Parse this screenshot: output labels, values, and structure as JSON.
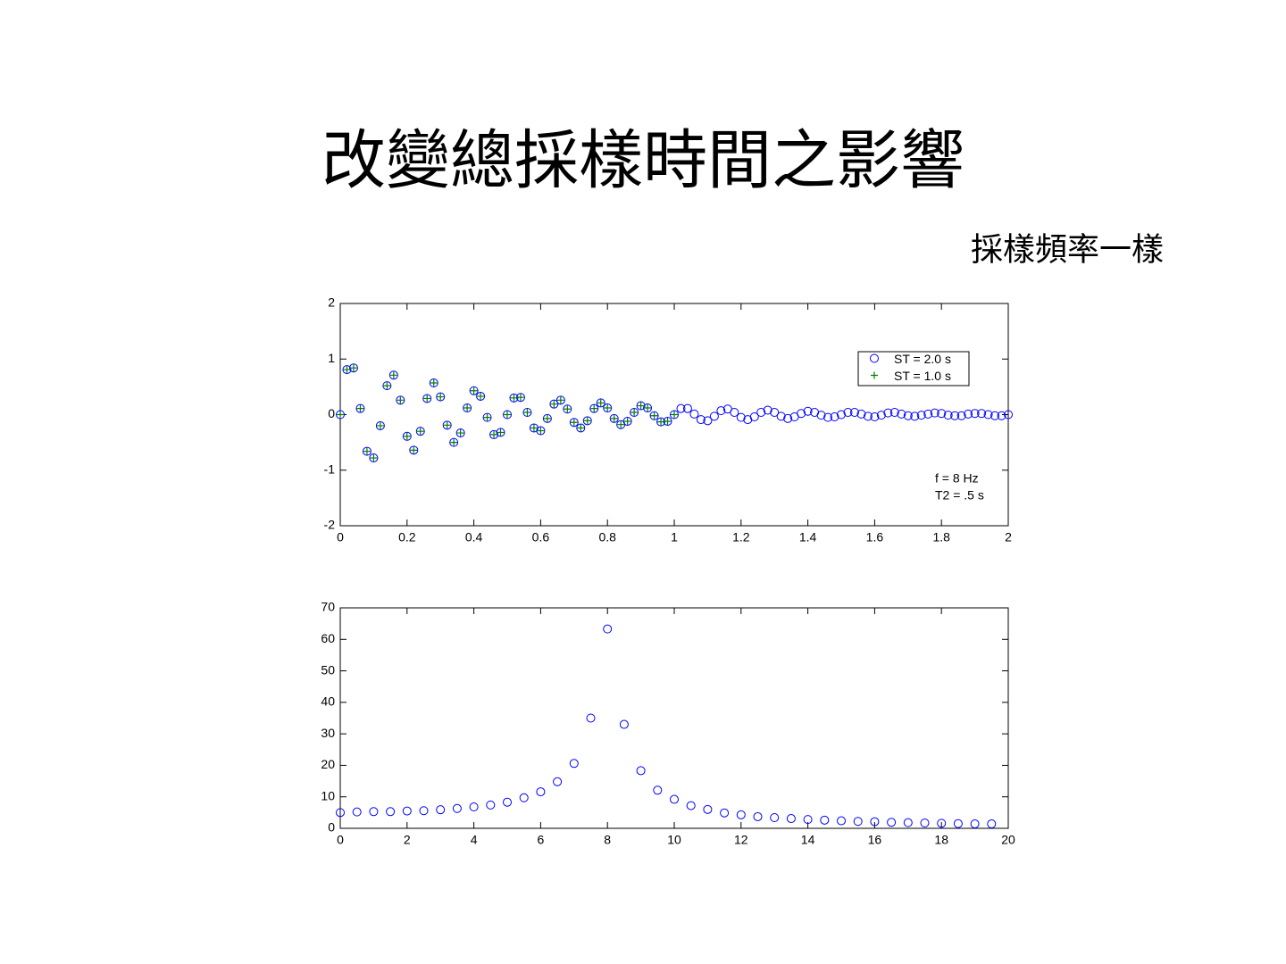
{
  "title": "改變總採樣時間之影響",
  "subtitle": "採樣頻率一樣",
  "chart_data": [
    {
      "type": "scatter",
      "xlim": [
        0,
        2
      ],
      "ylim": [
        -2,
        2
      ],
      "xticks": [
        0,
        0.2,
        0.4,
        0.6,
        0.8,
        1,
        1.2,
        1.4,
        1.6,
        1.8,
        2
      ],
      "yticks": [
        -2,
        -1,
        0,
        1,
        2
      ],
      "x": [
        0,
        0.02,
        0.04,
        0.06,
        0.08,
        0.1,
        0.12,
        0.14,
        0.16,
        0.18,
        0.2,
        0.22,
        0.24,
        0.26,
        0.28,
        0.3,
        0.32,
        0.34,
        0.36,
        0.38,
        0.4,
        0.42,
        0.44,
        0.46,
        0.48,
        0.5,
        0.52,
        0.54,
        0.56,
        0.58,
        0.6,
        0.62,
        0.64,
        0.66,
        0.68,
        0.7,
        0.72,
        0.74,
        0.76,
        0.78,
        0.8,
        0.82,
        0.84,
        0.86,
        0.88,
        0.9,
        0.92,
        0.94,
        0.96,
        0.98,
        1,
        1.02,
        1.04,
        1.06,
        1.08,
        1.1,
        1.12,
        1.14,
        1.16,
        1.18,
        1.2,
        1.22,
        1.24,
        1.26,
        1.28,
        1.3,
        1.32,
        1.34,
        1.36,
        1.38,
        1.4,
        1.42,
        1.44,
        1.46,
        1.48,
        1.5,
        1.52,
        1.54,
        1.56,
        1.58,
        1.6,
        1.62,
        1.64,
        1.66,
        1.68,
        1.7,
        1.72,
        1.74,
        1.76,
        1.78,
        1.8,
        1.82,
        1.84,
        1.86,
        1.88,
        1.9,
        1.92,
        1.94,
        1.96,
        1.98,
        2
      ],
      "series": [
        {
          "name": "ST = 2.0 s",
          "color": "#0000ff",
          "marker": "o",
          "values": [
            0,
            0.81,
            0.84,
            0.11,
            -0.66,
            -0.78,
            -0.2,
            0.52,
            0.71,
            0.26,
            -0.39,
            -0.64,
            -0.3,
            0.29,
            0.57,
            0.32,
            -0.19,
            -0.5,
            -0.33,
            0.12,
            0.43,
            0.33,
            -0.05,
            -0.36,
            -0.32,
            0,
            0.3,
            0.31,
            0.04,
            -0.24,
            -0.29,
            -0.07,
            0.19,
            0.26,
            0.1,
            -0.14,
            -0.24,
            -0.11,
            0.11,
            0.21,
            0.12,
            -0.07,
            -0.18,
            -0.12,
            0.04,
            0.16,
            0.12,
            -0.02,
            -0.13,
            -0.12,
            0,
            0.11,
            0.11,
            0.01,
            -0.09,
            -0.11,
            -0.03,
            0.07,
            0.1,
            0.04,
            -0.05,
            -0.09,
            -0.04,
            0.04,
            0.08,
            0.04,
            -0.03,
            -0.07,
            -0.04,
            0.02,
            0.06,
            0.04,
            -0.01,
            -0.05,
            -0.04,
            0,
            0.04,
            0.04,
            0.01,
            -0.03,
            -0.04,
            -0.01,
            0.03,
            0.04,
            0.01,
            -0.02,
            -0.03,
            -0.01,
            0.01,
            0.03,
            0.02,
            -0.01,
            -0.02,
            -0.02,
            0.01,
            0.02,
            0.02,
            0,
            -0.02,
            -0.02,
            0
          ]
        },
        {
          "name": "ST = 1.0 s",
          "color": "#007f00",
          "marker": "+",
          "values": [
            0,
            0.81,
            0.84,
            0.11,
            -0.66,
            -0.78,
            -0.2,
            0.52,
            0.71,
            0.26,
            -0.39,
            -0.64,
            -0.3,
            0.29,
            0.57,
            0.32,
            -0.19,
            -0.5,
            -0.33,
            0.12,
            0.43,
            0.33,
            -0.05,
            -0.36,
            -0.32,
            0,
            0.3,
            0.31,
            0.04,
            -0.24,
            -0.29,
            -0.07,
            0.19,
            0.26,
            0.1,
            -0.14,
            -0.24,
            -0.11,
            0.11,
            0.21,
            0.12,
            -0.07,
            -0.18,
            -0.12,
            0.04,
            0.16,
            0.12,
            -0.02,
            -0.13,
            -0.12,
            0,
            null,
            null,
            null,
            null,
            null,
            null,
            null,
            null,
            null,
            null,
            null,
            null,
            null,
            null,
            null,
            null,
            null,
            null,
            null,
            null,
            null,
            null,
            null,
            null,
            null,
            null,
            null,
            null,
            null,
            null,
            null,
            null,
            null,
            null,
            null,
            null,
            null,
            null,
            null,
            null,
            null,
            null,
            null,
            null,
            null,
            null,
            null,
            null,
            null,
            null
          ]
        }
      ],
      "legend": "upper right",
      "annotations": [
        "f = 8 Hz",
        "T2 = .5 s"
      ]
    },
    {
      "type": "scatter",
      "xlim": [
        0,
        20
      ],
      "ylim": [
        0,
        70
      ],
      "xticks": [
        0,
        2,
        4,
        6,
        8,
        10,
        12,
        14,
        16,
        18,
        20
      ],
      "yticks": [
        0,
        10,
        20,
        30,
        40,
        50,
        60,
        70
      ],
      "x": [
        0,
        0.5,
        1,
        1.5,
        2,
        2.5,
        3,
        3.5,
        4,
        4.5,
        5,
        5.5,
        6,
        6.5,
        7,
        7.5,
        8,
        8.5,
        9,
        9.5,
        10,
        10.5,
        11,
        11.5,
        12,
        12.5,
        13,
        13.5,
        14,
        14.5,
        15,
        15.5,
        16,
        16.5,
        17,
        17.5,
        18,
        18.5,
        19,
        19.5
      ],
      "series": [
        {
          "color": "#0000ff",
          "marker": "o",
          "values": [
            5,
            5.2,
            5.3,
            5.3,
            5.5,
            5.6,
            5.9,
            6.3,
            6.8,
            7.4,
            8.3,
            9.7,
            11.6,
            14.8,
            20.6,
            35,
            63.3,
            33,
            18.3,
            12.1,
            9.2,
            7.2,
            6,
            4.9,
            4.3,
            3.7,
            3.4,
            3.1,
            2.8,
            2.6,
            2.4,
            2.2,
            2.1,
            1.9,
            1.8,
            1.7,
            1.6,
            1.5,
            1.4,
            1.4
          ]
        }
      ]
    }
  ]
}
